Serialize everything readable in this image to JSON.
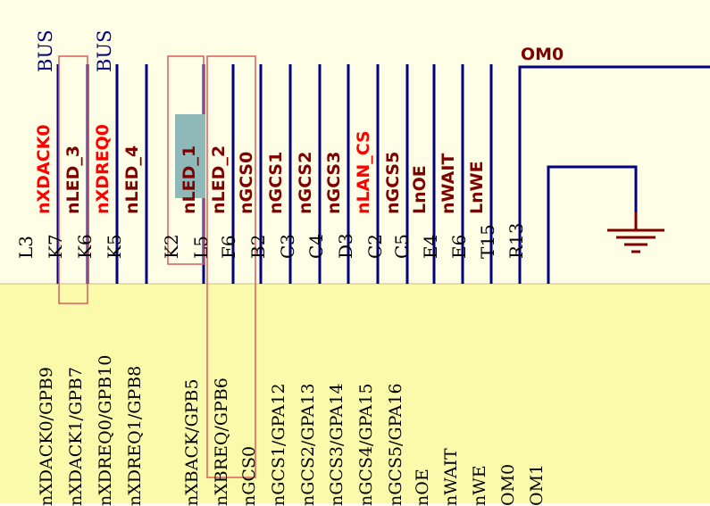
{
  "colors": {
    "upper_background": "#fefee6",
    "lower_background": "#fafaaa",
    "wire": "#000080",
    "ground": "#800000",
    "net_red": "#ff0000",
    "net_dark": "#800000",
    "bus": "#000080",
    "highlight_box": "#dc5c5c",
    "selection_fill": "#8fb9b9"
  },
  "bus_labels": [
    "BUS",
    "BUS"
  ],
  "om0_net": "OM0",
  "columns": [
    {
      "pin": "L3",
      "net": "nXDACK0",
      "net_color": "red",
      "signal": "nXDACK0/GPB9"
    },
    {
      "pin": "K7",
      "net": "nLED_3",
      "net_color": "dark",
      "signal": "nXDACK1/GPB7"
    },
    {
      "pin": "K6",
      "net": "nXDREQ0",
      "net_color": "red",
      "signal": "nXDREQ0/GPB10"
    },
    {
      "pin": "K5",
      "net": "nLED_4",
      "net_color": "dark",
      "signal": "nXDREQ1/GPB8"
    },
    {
      "pin": "K2",
      "net": "nLED_1",
      "net_color": "dark",
      "signal": "nXBACK/GPB5",
      "selected": true
    },
    {
      "pin": "L5",
      "net": "nLED_2",
      "net_color": "dark",
      "signal": "nXBREQ/GPB6"
    },
    {
      "pin": "F6",
      "net": "nGCS0",
      "net_color": "dark",
      "signal": "nGCS0"
    },
    {
      "pin": "B2",
      "net": "nGCS1",
      "net_color": "dark",
      "signal": "nGCS1/GPA12"
    },
    {
      "pin": "C3",
      "net": "nGCS2",
      "net_color": "dark",
      "signal": "nGCS2/GPA13"
    },
    {
      "pin": "C4",
      "net": "nGCS3",
      "net_color": "dark",
      "signal": "nGCS3/GPA14"
    },
    {
      "pin": "D3",
      "net": "nLAN_CS",
      "net_color": "red",
      "signal": "nGCS4/GPA15"
    },
    {
      "pin": "C2",
      "net": "nGCS5",
      "net_color": "dark",
      "signal": "nGCS5/GPA16"
    },
    {
      "pin": "C5",
      "net": "LnOE",
      "net_color": "dark",
      "signal": "nOE"
    },
    {
      "pin": "E4",
      "net": "nWAIT",
      "net_color": "dark",
      "signal": "nWAIT"
    },
    {
      "pin": "E6",
      "net": "LnWE",
      "net_color": "dark",
      "signal": "nWE"
    },
    {
      "pin": "T15",
      "net": "",
      "net_color": "dark",
      "signal": "OM0"
    },
    {
      "pin": "R13",
      "net": "",
      "net_color": "dark",
      "signal": "OM1"
    }
  ]
}
